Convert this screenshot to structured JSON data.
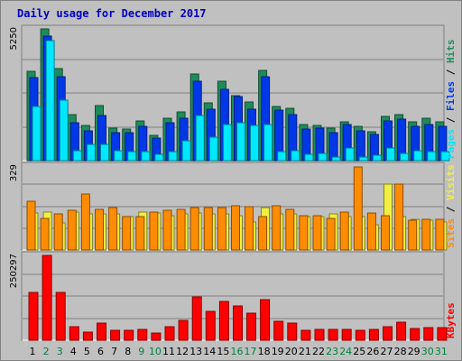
{
  "colors": {
    "hits": "#1e8c5a",
    "files": "#0038e8",
    "pages": "#00e8ff",
    "visits": "#f0f040",
    "sites": "#ff8c00",
    "kbytes": "#ff0000",
    "title": "#0000c0",
    "weekday": "#000000",
    "weekend": "#008040"
  },
  "chart_data": [
    {
      "type": "bar",
      "title": "Daily usage for December 2017",
      "ylabel_parts": [
        "Pages",
        "Files",
        "Hits"
      ],
      "ymax_label": "5250",
      "ylim": [
        0,
        5250
      ],
      "categories": [
        "1",
        "2",
        "3",
        "4",
        "5",
        "6",
        "7",
        "8",
        "9",
        "10",
        "11",
        "12",
        "13",
        "14",
        "15",
        "16",
        "17",
        "18",
        "19",
        "20",
        "21",
        "22",
        "23",
        "24",
        "25",
        "26",
        "27",
        "28",
        "29",
        "30",
        "31"
      ],
      "series": [
        {
          "name": "Hits",
          "values": [
            3550,
            5250,
            3650,
            1850,
            1400,
            2200,
            1300,
            1250,
            1600,
            1000,
            1700,
            1950,
            3450,
            2300,
            3150,
            2600,
            2350,
            3600,
            2150,
            2100,
            1450,
            1400,
            1300,
            1550,
            1350,
            1150,
            1750,
            1850,
            1550,
            1700,
            1550
          ]
        },
        {
          "name": "Files",
          "values": [
            3300,
            4950,
            3350,
            1500,
            1200,
            1800,
            1100,
            1100,
            1350,
            900,
            1500,
            1700,
            3150,
            2050,
            2850,
            2550,
            2050,
            3350,
            2000,
            1850,
            1250,
            1300,
            1100,
            1450,
            1200,
            1050,
            1600,
            1650,
            1350,
            1450,
            1350
          ]
        },
        {
          "name": "Pages",
          "values": [
            2150,
            4800,
            2400,
            400,
            650,
            650,
            400,
            350,
            350,
            250,
            350,
            800,
            1800,
            950,
            1450,
            1500,
            1400,
            1450,
            350,
            400,
            250,
            300,
            150,
            500,
            150,
            200,
            500,
            300,
            400,
            350,
            350
          ]
        }
      ]
    },
    {
      "type": "bar",
      "ylabel_parts": [
        "Sites",
        "Visits"
      ],
      "ymax_label": "329",
      "ylim": [
        0,
        329
      ],
      "categories": [
        "1",
        "2",
        "3",
        "4",
        "5",
        "6",
        "7",
        "8",
        "9",
        "10",
        "11",
        "12",
        "13",
        "14",
        "15",
        "16",
        "17",
        "18",
        "19",
        "20",
        "21",
        "22",
        "23",
        "24",
        "25",
        "26",
        "27",
        "28",
        "29",
        "30",
        "31"
      ],
      "series": [
        {
          "name": "Visits",
          "values": [
            145,
            150,
            105,
            150,
            140,
            140,
            140,
            130,
            148,
            145,
            135,
            140,
            145,
            140,
            140,
            135,
            110,
            165,
            140,
            140,
            130,
            130,
            140,
            130,
            130,
            100,
            260,
            130,
            120,
            115,
            110
          ]
        },
        {
          "name": "Sites",
          "values": [
            190,
            125,
            140,
            155,
            220,
            160,
            165,
            130,
            130,
            150,
            155,
            160,
            165,
            165,
            165,
            175,
            170,
            130,
            175,
            160,
            135,
            135,
            125,
            150,
            325,
            145,
            135,
            260,
            115,
            120,
            120
          ]
        }
      ]
    },
    {
      "type": "bar",
      "ylabel_parts": [
        "KBytes"
      ],
      "ymax_label": "250297",
      "ylim": [
        0,
        250297
      ],
      "categories": [
        "1",
        "2",
        "3",
        "4",
        "5",
        "6",
        "7",
        "8",
        "9",
        "10",
        "11",
        "12",
        "13",
        "14",
        "15",
        "16",
        "17",
        "18",
        "19",
        "20",
        "21",
        "22",
        "23",
        "24",
        "25",
        "26",
        "27",
        "28",
        "29",
        "30",
        "31"
      ],
      "series": [
        {
          "name": "KBytes",
          "values": [
            140000,
            250297,
            142000,
            39000,
            25000,
            50000,
            29000,
            28000,
            31000,
            22000,
            40000,
            59000,
            128000,
            84000,
            115000,
            102000,
            81000,
            120000,
            57000,
            50000,
            30000,
            31000,
            31000,
            33000,
            29000,
            32000,
            41000,
            52000,
            34000,
            37000,
            36000
          ]
        }
      ]
    }
  ],
  "weekend_days": [
    2,
    3,
    9,
    10,
    16,
    17,
    23,
    24,
    30,
    31
  ]
}
